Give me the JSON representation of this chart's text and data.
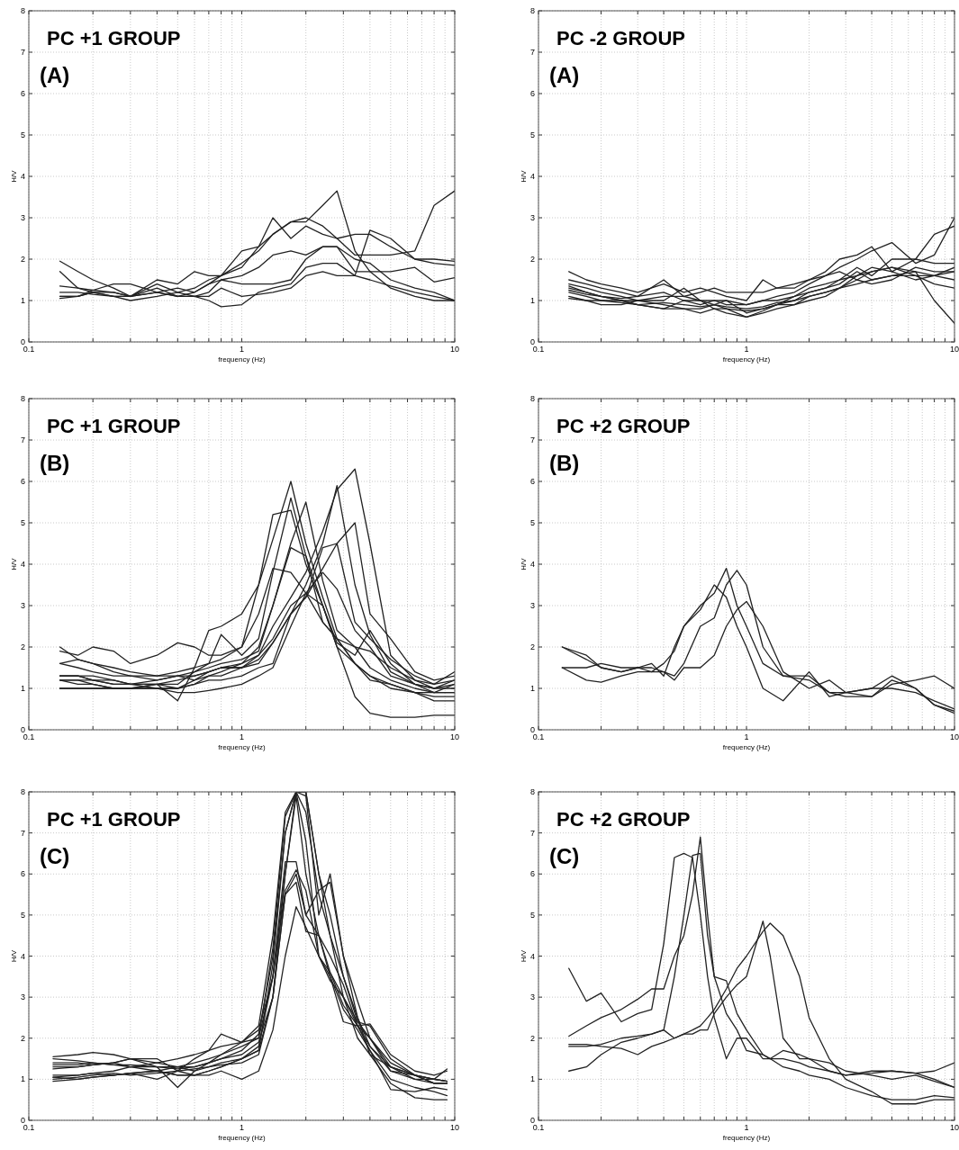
{
  "chart_data": [
    {
      "type": "line",
      "title": "PC +1 GROUP",
      "subtitle": "(A)",
      "xlabel": "frequency (Hz)",
      "ylabel": "H/V",
      "log": "x",
      "grid": true,
      "color": "#222222",
      "xlim": [
        0.1,
        10
      ],
      "ylim": [
        0,
        8
      ],
      "yticks": [
        0,
        1,
        2,
        3,
        4,
        5,
        6,
        7,
        8
      ],
      "xticks": [
        0.1,
        {
          "value": 0.2,
          "label": null
        },
        {
          "value": 0.3,
          "label": null
        },
        {
          "value": 0.4,
          "label": null
        },
        {
          "value": 0.5,
          "label": null
        },
        {
          "value": 0.6,
          "label": null
        },
        {
          "value": 0.7,
          "label": null
        },
        {
          "value": 0.8,
          "label": null
        },
        {
          "value": 0.9,
          "label": null
        },
        1,
        {
          "value": 2,
          "label": null
        },
        {
          "value": 3,
          "label": null
        },
        {
          "value": 4,
          "label": null
        },
        {
          "value": 5,
          "label": null
        },
        {
          "value": 6,
          "label": null
        },
        {
          "value": 7,
          "label": null
        },
        {
          "value": 8,
          "label": null
        },
        {
          "value": 9,
          "label": null
        },
        10
      ],
      "x": [
        0.14,
        0.17,
        0.2,
        0.25,
        0.3,
        0.4,
        0.5,
        0.6,
        0.7,
        0.8,
        1,
        1.2,
        1.4,
        1.7,
        2,
        2.4,
        2.8,
        3.4,
        4,
        5,
        6.5,
        8,
        10
      ],
      "series": [
        {
          "values": [
            1.2,
            1.2,
            1.15,
            1.1,
            1.1,
            1.4,
            1.2,
            1.3,
            1.5,
            1.6,
            1.8,
            2.3,
            2.6,
            2.9,
            2.9,
            3.3,
            3.65,
            2.2,
            1.7,
            1.3,
            1.1,
            1.0,
            1.0
          ]
        },
        {
          "values": [
            1.1,
            1.1,
            1.2,
            1.2,
            1.1,
            1.3,
            1.1,
            1.2,
            1.4,
            1.6,
            2.2,
            2.3,
            3.0,
            2.5,
            2.8,
            2.6,
            2.5,
            2.1,
            2.1,
            2.1,
            2.2,
            3.3,
            3.65
          ]
        },
        {
          "values": [
            1.95,
            1.7,
            1.5,
            1.3,
            1.1,
            1.5,
            1.4,
            1.7,
            1.6,
            1.6,
            1.9,
            2.2,
            2.6,
            2.9,
            3.0,
            2.8,
            2.5,
            2.6,
            2.6,
            2.3,
            2.0,
            2.0,
            1.95
          ]
        },
        {
          "values": [
            1.7,
            1.3,
            1.2,
            1.1,
            1.1,
            1.2,
            1.3,
            1.2,
            1.4,
            1.5,
            1.6,
            1.8,
            2.1,
            2.2,
            2.1,
            2.3,
            2.3,
            2.0,
            1.9,
            1.5,
            1.3,
            1.2,
            1.0
          ]
        },
        {
          "values": [
            1.35,
            1.3,
            1.25,
            1.2,
            1.1,
            1.2,
            1.1,
            1.1,
            1.0,
            0.85,
            0.9,
            1.2,
            1.3,
            1.4,
            1.8,
            1.9,
            1.9,
            1.6,
            2.7,
            2.5,
            2.0,
            1.9,
            1.85
          ]
        },
        {
          "values": [
            1.05,
            1.1,
            1.25,
            1.4,
            1.4,
            1.2,
            1.1,
            1.1,
            1.2,
            1.5,
            1.4,
            1.4,
            1.4,
            1.5,
            2.0,
            2.3,
            2.3,
            1.7,
            1.7,
            1.7,
            1.8,
            1.45,
            1.55
          ]
        },
        {
          "values": [
            1.1,
            1.1,
            1.2,
            1.1,
            1.0,
            1.1,
            1.2,
            1.1,
            1.1,
            1.3,
            1.1,
            1.15,
            1.2,
            1.3,
            1.6,
            1.7,
            1.6,
            1.6,
            1.5,
            1.35,
            1.2,
            1.1,
            1.0
          ]
        }
      ]
    },
    {
      "type": "line",
      "title": "PC -2 GROUP",
      "subtitle": "(A)",
      "xlabel": "frequency (Hz)",
      "ylabel": "H/V",
      "log": "x",
      "grid": true,
      "color": "#222222",
      "xlim": [
        0.1,
        10
      ],
      "ylim": [
        0,
        8
      ],
      "yticks": [
        0,
        1,
        2,
        3,
        4,
        5,
        6,
        7,
        8
      ],
      "xticks": [
        0.1,
        {
          "value": 0.2,
          "label": null
        },
        {
          "value": 0.3,
          "label": null
        },
        {
          "value": 0.4,
          "label": null
        },
        {
          "value": 0.5,
          "label": null
        },
        {
          "value": 0.6,
          "label": null
        },
        {
          "value": 0.7,
          "label": null
        },
        {
          "value": 0.8,
          "label": null
        },
        {
          "value": 0.9,
          "label": null
        },
        1,
        {
          "value": 2,
          "label": null
        },
        {
          "value": 3,
          "label": null
        },
        {
          "value": 4,
          "label": null
        },
        {
          "value": 5,
          "label": null
        },
        {
          "value": 6,
          "label": null
        },
        {
          "value": 7,
          "label": null
        },
        {
          "value": 8,
          "label": null
        },
        {
          "value": 9,
          "label": null
        },
        10
      ],
      "x": [
        0.14,
        0.17,
        0.2,
        0.25,
        0.3,
        0.4,
        0.5,
        0.6,
        0.7,
        0.8,
        1,
        1.2,
        1.4,
        1.7,
        2,
        2.4,
        2.8,
        3.4,
        4,
        5,
        6.5,
        8,
        10
      ],
      "series": [
        {
          "values": [
            1.7,
            1.5,
            1.4,
            1.3,
            1.2,
            1.4,
            1.2,
            1.3,
            1.2,
            1.1,
            1.0,
            1.5,
            1.3,
            1.4,
            1.5,
            1.6,
            1.8,
            2.0,
            2.2,
            2.4,
            1.9,
            2.1,
            3.0
          ]
        },
        {
          "values": [
            1.5,
            1.4,
            1.3,
            1.2,
            1.1,
            1.5,
            1.1,
            1.2,
            1.3,
            1.2,
            1.2,
            1.2,
            1.3,
            1.3,
            1.5,
            1.7,
            2.0,
            2.1,
            2.3,
            1.7,
            2.0,
            2.6,
            2.8
          ]
        },
        {
          "values": [
            1.4,
            1.3,
            1.2,
            1.1,
            1.0,
            1.0,
            1.3,
            1.0,
            0.9,
            1.0,
            0.7,
            0.8,
            0.9,
            1.1,
            1.3,
            1.4,
            1.5,
            1.8,
            1.6,
            2.0,
            2.0,
            1.9,
            1.9
          ]
        },
        {
          "values": [
            1.3,
            1.2,
            1.1,
            1.0,
            1.0,
            0.9,
            0.8,
            0.8,
            0.9,
            0.8,
            0.6,
            0.7,
            0.8,
            0.9,
            1.1,
            1.2,
            1.3,
            1.6,
            1.7,
            1.8,
            1.7,
            1.0,
            0.45
          ]
        },
        {
          "values": [
            1.2,
            1.1,
            1.0,
            1.0,
            0.9,
            0.8,
            1.0,
            0.9,
            1.0,
            1.0,
            0.9,
            1.0,
            1.1,
            1.2,
            1.4,
            1.6,
            1.7,
            1.5,
            1.4,
            1.5,
            1.8,
            1.7,
            1.7
          ]
        },
        {
          "values": [
            1.1,
            1.0,
            0.9,
            0.9,
            1.0,
            1.1,
            1.1,
            1.0,
            0.8,
            0.8,
            0.75,
            0.8,
            0.9,
            1.0,
            1.2,
            1.3,
            1.4,
            1.7,
            1.5,
            1.6,
            1.7,
            1.6,
            1.5
          ]
        },
        {
          "values": [
            1.35,
            1.2,
            1.1,
            1.0,
            0.9,
            0.8,
            0.8,
            0.7,
            0.8,
            0.7,
            0.6,
            0.75,
            0.9,
            0.9,
            1.0,
            1.1,
            1.3,
            1.4,
            1.5,
            1.6,
            1.6,
            1.4,
            1.3
          ]
        },
        {
          "values": [
            1.25,
            1.15,
            1.1,
            1.05,
            1.1,
            1.2,
            1.0,
            1.0,
            1.0,
            0.9,
            0.9,
            1.0,
            1.0,
            1.1,
            1.2,
            1.3,
            1.5,
            1.6,
            1.8,
            1.7,
            1.5,
            1.6,
            1.8
          ]
        },
        {
          "values": [
            1.05,
            1.0,
            1.0,
            0.95,
            0.9,
            0.95,
            0.9,
            0.85,
            0.9,
            0.85,
            0.8,
            0.85,
            0.95,
            1.0,
            1.1,
            1.2,
            1.3,
            1.5,
            1.7,
            1.8,
            1.6,
            1.6,
            1.7
          ]
        }
      ]
    },
    {
      "type": "line",
      "title": "PC +1 GROUP",
      "subtitle": "(B)",
      "xlabel": "frequency (Hz)",
      "ylabel": "H/V",
      "log": "x",
      "grid": true,
      "color": "#222222",
      "xlim": [
        0.1,
        10
      ],
      "ylim": [
        0,
        8
      ],
      "yticks": [
        0,
        1,
        2,
        3,
        4,
        5,
        6,
        7,
        8
      ],
      "xticks": [
        0.1,
        {
          "value": 0.2,
          "label": null
        },
        {
          "value": 0.3,
          "label": null
        },
        {
          "value": 0.4,
          "label": null
        },
        {
          "value": 0.5,
          "label": null
        },
        {
          "value": 0.6,
          "label": null
        },
        {
          "value": 0.7,
          "label": null
        },
        {
          "value": 0.8,
          "label": null
        },
        {
          "value": 0.9,
          "label": null
        },
        1,
        {
          "value": 2,
          "label": null
        },
        {
          "value": 3,
          "label": null
        },
        {
          "value": 4,
          "label": null
        },
        {
          "value": 5,
          "label": null
        },
        {
          "value": 6,
          "label": null
        },
        {
          "value": 7,
          "label": null
        },
        {
          "value": 8,
          "label": null
        },
        {
          "value": 9,
          "label": null
        },
        10
      ],
      "x": [
        0.14,
        0.17,
        0.2,
        0.25,
        0.3,
        0.4,
        0.5,
        0.6,
        0.7,
        0.8,
        1,
        1.2,
        1.4,
        1.7,
        2,
        2.4,
        2.8,
        3.4,
        4,
        5,
        6.5,
        8,
        10
      ],
      "series": [
        {
          "values": [
            1.3,
            1.3,
            1.2,
            1.2,
            1.1,
            1.1,
            0.7,
            1.5,
            2.4,
            2.5,
            2.8,
            3.5,
            4.6,
            6.0,
            4.5,
            3.2,
            2.2,
            1.6,
            1.2,
            1.1,
            0.9,
            0.8,
            0.8
          ]
        },
        {
          "values": [
            1.2,
            1.2,
            1.1,
            1.0,
            1.0,
            1.1,
            1.1,
            1.4,
            1.6,
            2.3,
            1.8,
            2.2,
            3.8,
            5.6,
            4.2,
            2.6,
            2.2,
            1.6,
            1.3,
            1.0,
            0.9,
            0.7,
            0.7
          ]
        },
        {
          "values": [
            1.3,
            1.3,
            1.3,
            1.2,
            1.1,
            1.2,
            1.3,
            1.3,
            1.4,
            1.5,
            1.6,
            2.0,
            3.0,
            4.5,
            5.5,
            3.6,
            2.4,
            2.0,
            1.5,
            1.2,
            1.0,
            0.9,
            1.1
          ]
        },
        {
          "values": [
            1.2,
            1.2,
            1.2,
            1.1,
            1.1,
            1.0,
            1.0,
            1.2,
            1.3,
            1.3,
            1.5,
            1.6,
            2.1,
            2.8,
            3.5,
            4.5,
            5.9,
            3.5,
            2.3,
            1.4,
            1.1,
            1.0,
            1.1
          ]
        },
        {
          "values": [
            1.0,
            1.0,
            1.0,
            1.0,
            1.0,
            1.0,
            1.0,
            1.1,
            1.3,
            1.4,
            1.6,
            1.8,
            2.5,
            3.2,
            3.8,
            4.8,
            5.8,
            6.3,
            4.5,
            1.8,
            1.2,
            1.0,
            1.0
          ]
        },
        {
          "values": [
            1.6,
            1.7,
            1.6,
            1.4,
            1.3,
            1.3,
            1.4,
            1.5,
            1.6,
            1.7,
            2.0,
            3.5,
            5.2,
            5.3,
            4.0,
            3.0,
            2.0,
            1.6,
            1.3,
            1.1,
            0.9,
            0.9,
            0.9
          ]
        },
        {
          "values": [
            1.3,
            1.3,
            1.2,
            1.1,
            1.1,
            1.1,
            1.0,
            1.1,
            1.2,
            1.2,
            1.3,
            1.5,
            1.6,
            2.8,
            3.2,
            3.9,
            4.5,
            5.0,
            2.8,
            2.2,
            1.4,
            1.2,
            1.3
          ]
        },
        {
          "values": [
            2.0,
            1.7,
            1.6,
            1.5,
            1.4,
            1.3,
            1.3,
            1.4,
            1.5,
            1.6,
            1.7,
            1.9,
            3.0,
            4.4,
            4.2,
            3.0,
            2.1,
            1.8,
            2.4,
            1.6,
            1.1,
            0.9,
            0.9
          ]
        },
        {
          "values": [
            1.9,
            1.8,
            2.0,
            1.9,
            1.6,
            1.8,
            2.1,
            2.0,
            1.8,
            1.8,
            2.0,
            2.8,
            3.9,
            3.8,
            3.3,
            2.6,
            2.2,
            2.0,
            1.9,
            1.5,
            1.2,
            1.1,
            1.2
          ]
        },
        {
          "values": [
            1.6,
            1.5,
            1.4,
            1.3,
            1.3,
            1.2,
            1.3,
            1.2,
            1.4,
            1.5,
            1.5,
            1.7,
            2.1,
            2.8,
            3.2,
            4.4,
            4.5,
            2.6,
            2.2,
            1.7,
            1.3,
            1.1,
            1.4
          ]
        },
        {
          "values": [
            1.2,
            1.1,
            1.1,
            1.0,
            1.0,
            1.1,
            1.2,
            1.3,
            1.4,
            1.5,
            1.5,
            1.8,
            2.2,
            3.0,
            3.3,
            3.8,
            3.4,
            2.4,
            2.0,
            1.3,
            1.1,
            1.0,
            1.2
          ]
        },
        {
          "values": [
            1.0,
            1.0,
            1.0,
            1.0,
            1.0,
            1.0,
            0.9,
            0.9,
            0.95,
            1.0,
            1.1,
            1.3,
            1.5,
            2.5,
            3.3,
            3.0,
            2.0,
            0.8,
            0.4,
            0.3,
            0.3,
            0.35,
            0.35
          ]
        }
      ]
    },
    {
      "type": "line",
      "title": "PC +2 GROUP",
      "subtitle": "(B)",
      "xlabel": "frequency (Hz)",
      "ylabel": "H/V",
      "log": "x",
      "grid": true,
      "color": "#222222",
      "xlim": [
        0.1,
        10
      ],
      "ylim": [
        0,
        8
      ],
      "yticks": [
        0,
        1,
        2,
        3,
        4,
        5,
        6,
        7,
        8
      ],
      "xticks": [
        0.1,
        {
          "value": 0.2,
          "label": null
        },
        {
          "value": 0.3,
          "label": null
        },
        {
          "value": 0.4,
          "label": null
        },
        {
          "value": 0.5,
          "label": null
        },
        {
          "value": 0.6,
          "label": null
        },
        {
          "value": 0.7,
          "label": null
        },
        {
          "value": 0.8,
          "label": null
        },
        {
          "value": 0.9,
          "label": null
        },
        1,
        {
          "value": 2,
          "label": null
        },
        {
          "value": 3,
          "label": null
        },
        {
          "value": 4,
          "label": null
        },
        {
          "value": 5,
          "label": null
        },
        {
          "value": 6,
          "label": null
        },
        {
          "value": 7,
          "label": null
        },
        {
          "value": 8,
          "label": null
        },
        {
          "value": 9,
          "label": null
        },
        10
      ],
      "x": [
        0.13,
        0.17,
        0.2,
        0.25,
        0.3,
        0.35,
        0.4,
        0.45,
        0.5,
        0.6,
        0.7,
        0.8,
        0.9,
        1,
        1.2,
        1.5,
        2,
        2.5,
        3,
        4,
        5,
        6.5,
        8,
        10
      ],
      "series": [
        {
          "values": [
            2.0,
            1.8,
            1.5,
            1.4,
            1.5,
            1.6,
            1.3,
            2.0,
            2.5,
            3.0,
            3.3,
            3.9,
            3.0,
            2.5,
            1.6,
            1.3,
            1.3,
            0.9,
            0.9,
            1.0,
            1.0,
            0.9,
            0.7,
            0.5
          ]
        },
        {
          "values": [
            1.5,
            1.5,
            1.6,
            1.5,
            1.5,
            1.5,
            1.4,
            1.3,
            1.6,
            2.5,
            2.7,
            3.5,
            3.85,
            3.5,
            2.0,
            1.3,
            1.2,
            0.9,
            0.8,
            0.8,
            1.2,
            1.0,
            0.6,
            0.4
          ]
        },
        {
          "values": [
            2.0,
            1.7,
            1.5,
            1.4,
            1.5,
            1.4,
            1.6,
            1.9,
            2.5,
            2.9,
            3.5,
            3.2,
            2.5,
            2.0,
            1.0,
            0.7,
            1.4,
            0.8,
            0.9,
            1.0,
            1.3,
            1.0,
            0.6,
            0.45
          ]
        },
        {
          "values": [
            1.5,
            1.2,
            1.15,
            1.3,
            1.4,
            1.4,
            1.4,
            1.2,
            1.5,
            1.5,
            1.8,
            2.5,
            2.9,
            3.1,
            2.5,
            1.4,
            1.0,
            1.2,
            0.9,
            0.8,
            1.1,
            1.2,
            1.3,
            1.0
          ]
        }
      ]
    },
    {
      "type": "line",
      "title": "PC +1 GROUP",
      "subtitle": "(C)",
      "xlabel": "frequency (Hz)",
      "ylabel": "H/V",
      "log": "x",
      "grid": true,
      "color": "#222222",
      "xlim": [
        0.1,
        10
      ],
      "ylim": [
        0,
        8
      ],
      "yticks": [
        0,
        1,
        2,
        3,
        4,
        5,
        6,
        7,
        8
      ],
      "xticks": [
        0.1,
        {
          "value": 0.2,
          "label": null
        },
        {
          "value": 0.3,
          "label": null
        },
        {
          "value": 0.4,
          "label": null
        },
        {
          "value": 0.5,
          "label": null
        },
        {
          "value": 0.6,
          "label": null
        },
        {
          "value": 0.7,
          "label": null
        },
        {
          "value": 0.8,
          "label": null
        },
        {
          "value": 0.9,
          "label": null
        },
        1,
        {
          "value": 2,
          "label": null
        },
        {
          "value": 3,
          "label": null
        },
        {
          "value": 4,
          "label": null
        },
        {
          "value": 5,
          "label": null
        },
        {
          "value": 6,
          "label": null
        },
        {
          "value": 7,
          "label": null
        },
        {
          "value": 8,
          "label": null
        },
        {
          "value": 9,
          "label": null
        },
        10
      ],
      "x": [
        0.13,
        0.17,
        0.2,
        0.25,
        0.3,
        0.4,
        0.5,
        0.6,
        0.7,
        0.8,
        1,
        1.2,
        1.4,
        1.6,
        1.8,
        2,
        2.3,
        2.6,
        3,
        3.5,
        4,
        5,
        6.5,
        8,
        9.2
      ],
      "series": [
        {
          "values": [
            1.55,
            1.6,
            1.65,
            1.6,
            1.5,
            1.4,
            1.5,
            1.6,
            1.7,
            1.8,
            1.9,
            2.2,
            3.5,
            6.0,
            8,
            8,
            6.0,
            4.5,
            3.5,
            2.5,
            1.8,
            1.3,
            1.0,
            1.0,
            0.95
          ]
        },
        {
          "values": [
            1.35,
            1.35,
            1.4,
            1.35,
            1.3,
            1.3,
            1.3,
            1.3,
            1.4,
            1.5,
            1.7,
            2.1,
            4.0,
            7.0,
            8,
            8,
            6.0,
            5.0,
            3.5,
            2.4,
            2.0,
            1.3,
            1.1,
            1.0,
            0.95
          ]
        },
        {
          "values": [
            1.05,
            1.1,
            1.15,
            1.2,
            1.3,
            1.4,
            1.3,
            1.2,
            1.4,
            1.6,
            1.8,
            2.0,
            3.5,
            6.3,
            6.3,
            5.0,
            4.5,
            4.0,
            3.3,
            2.3,
            2.0,
            1.2,
            1.0,
            0.9,
            0.9
          ]
        },
        {
          "values": [
            1.4,
            1.4,
            1.35,
            1.4,
            1.5,
            1.5,
            1.2,
            1.5,
            1.7,
            2.1,
            1.9,
            2.3,
            4.5,
            7.5,
            8,
            7.9,
            5.0,
            6.0,
            4.0,
            2.9,
            2.0,
            1.4,
            1.1,
            0.9,
            0.9
          ]
        },
        {
          "values": [
            0.95,
            1.0,
            1.05,
            1.1,
            1.15,
            1.0,
            1.2,
            1.1,
            1.1,
            1.2,
            1.0,
            1.2,
            2.2,
            4.0,
            5.2,
            4.7,
            4.0,
            3.6,
            3.0,
            2.4,
            2.3,
            1.5,
            1.1,
            1.0,
            1.25
          ]
        },
        {
          "values": [
            1.25,
            1.3,
            1.35,
            1.4,
            1.5,
            1.3,
            0.8,
            1.2,
            1.3,
            1.4,
            1.5,
            1.8,
            3.5,
            5.6,
            6.1,
            5.6,
            4.0,
            3.4,
            3.0,
            2.3,
            1.7,
            1.0,
            0.8,
            0.7,
            0.6
          ]
        },
        {
          "values": [
            1.1,
            1.1,
            1.15,
            1.1,
            1.15,
            1.2,
            1.1,
            1.1,
            1.2,
            1.3,
            1.5,
            1.7,
            3.0,
            5.5,
            6.0,
            5.0,
            5.6,
            5.8,
            4.0,
            2.5,
            1.6,
            0.9,
            0.55,
            0.5,
            0.5
          ]
        },
        {
          "values": [
            1.05,
            1.0,
            1.05,
            1.1,
            1.15,
            1.2,
            1.1,
            1.1,
            1.2,
            1.3,
            1.5,
            1.7,
            3.8,
            7.0,
            8,
            7.5,
            5.5,
            4.5,
            3.0,
            2.0,
            1.6,
            1.3,
            1.1,
            1.0,
            0.95
          ]
        },
        {
          "values": [
            1.5,
            1.45,
            1.4,
            1.35,
            1.35,
            1.3,
            1.25,
            1.3,
            1.4,
            1.5,
            1.6,
            1.9,
            3.0,
            5.5,
            5.8,
            4.6,
            4.5,
            3.6,
            2.8,
            2.3,
            2.35,
            1.6,
            1.2,
            1.1,
            1.2
          ]
        },
        {
          "values": [
            1.3,
            1.3,
            1.35,
            1.4,
            1.3,
            1.2,
            1.3,
            1.4,
            1.5,
            1.6,
            1.9,
            2.0,
            4.2,
            7.4,
            8,
            6.8,
            4.0,
            3.5,
            2.4,
            2.3,
            1.8,
            1.2,
            1.1,
            0.9,
            0.9
          ]
        },
        {
          "values": [
            1.0,
            1.05,
            1.1,
            1.15,
            1.1,
            1.15,
            1.2,
            1.25,
            1.3,
            1.35,
            1.4,
            1.6,
            3.0,
            6.0,
            7.9,
            6.0,
            4.5,
            3.5,
            2.7,
            2.2,
            1.7,
            0.75,
            0.7,
            0.8,
            0.75
          ]
        }
      ]
    },
    {
      "type": "line",
      "title": "PC +2 GROUP",
      "subtitle": "(C)",
      "xlabel": "frequency (Hz)",
      "ylabel": "H/V",
      "log": "x",
      "grid": true,
      "color": "#222222",
      "xlim": [
        0.1,
        10
      ],
      "ylim": [
        0,
        8
      ],
      "yticks": [
        0,
        1,
        2,
        3,
        4,
        5,
        6,
        7,
        8
      ],
      "xticks": [
        0.1,
        {
          "value": 0.2,
          "label": null
        },
        {
          "value": 0.3,
          "label": null
        },
        {
          "value": 0.4,
          "label": null
        },
        {
          "value": 0.5,
          "label": null
        },
        {
          "value": 0.6,
          "label": null
        },
        {
          "value": 0.7,
          "label": null
        },
        {
          "value": 0.8,
          "label": null
        },
        {
          "value": 0.9,
          "label": null
        },
        1,
        {
          "value": 2,
          "label": null
        },
        {
          "value": 3,
          "label": null
        },
        {
          "value": 4,
          "label": null
        },
        {
          "value": 5,
          "label": null
        },
        {
          "value": 6,
          "label": null
        },
        {
          "value": 7,
          "label": null
        },
        {
          "value": 8,
          "label": null
        },
        {
          "value": 9,
          "label": null
        },
        10
      ],
      "x": [
        0.14,
        0.17,
        0.2,
        0.25,
        0.3,
        0.35,
        0.4,
        0.45,
        0.5,
        0.55,
        0.6,
        0.65,
        0.7,
        0.8,
        0.9,
        1,
        1.2,
        1.3,
        1.5,
        1.8,
        2,
        2.5,
        3,
        4,
        5,
        6.5,
        8,
        10
      ],
      "series": [
        {
          "values": [
            3.7,
            2.9,
            3.1,
            2.4,
            2.6,
            2.7,
            4.3,
            6.4,
            6.5,
            6.4,
            5.0,
            3.5,
            2.5,
            1.5,
            2.0,
            2.0,
            1.5,
            1.5,
            1.7,
            1.6,
            1.5,
            1.2,
            1.1,
            1.2,
            1.2,
            1.15,
            1.0,
            0.8
          ]
        },
        {
          "values": [
            2.05,
            2.3,
            2.5,
            2.7,
            2.95,
            3.2,
            3.2,
            4.0,
            4.5,
            5.5,
            6.9,
            5.0,
            3.5,
            3.4,
            2.6,
            2.2,
            1.6,
            1.5,
            1.5,
            1.4,
            1.3,
            1.2,
            1.1,
            1.15,
            1.2,
            1.15,
            1.2,
            1.4
          ]
        },
        {
          "values": [
            1.2,
            1.3,
            1.6,
            1.9,
            2.0,
            2.1,
            2.2,
            3.5,
            5.0,
            6.45,
            6.5,
            4.5,
            3.5,
            2.6,
            2.2,
            1.7,
            1.6,
            1.5,
            1.3,
            1.2,
            1.1,
            1.0,
            0.8,
            0.6,
            0.5,
            0.5,
            0.6,
            0.55
          ]
        },
        {
          "values": [
            1.8,
            1.8,
            1.85,
            2.0,
            2.05,
            2.1,
            2.2,
            2.0,
            2.1,
            2.1,
            2.2,
            2.2,
            2.6,
            3.0,
            3.3,
            3.5,
            4.85,
            4.0,
            2.0,
            1.5,
            1.5,
            1.4,
            1.2,
            1.1,
            1.0,
            1.1,
            0.95,
            0.8
          ]
        },
        {
          "values": [
            1.85,
            1.85,
            1.8,
            1.75,
            1.6,
            1.8,
            1.9,
            2.0,
            2.1,
            2.2,
            2.3,
            2.5,
            2.7,
            3.2,
            3.7,
            4.0,
            4.6,
            4.8,
            4.5,
            3.5,
            2.5,
            1.5,
            1.0,
            0.7,
            0.4,
            0.4,
            0.5,
            0.5
          ]
        }
      ]
    }
  ]
}
